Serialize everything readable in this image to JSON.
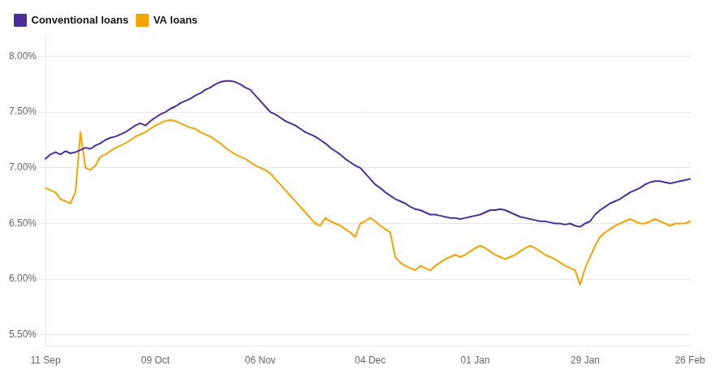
{
  "chart_data": {
    "type": "line",
    "categories": [
      "11 Sep",
      null,
      null,
      null,
      null,
      null,
      null,
      null,
      null,
      null,
      null,
      null,
      null,
      null,
      null,
      null,
      null,
      null,
      null,
      null,
      null,
      null,
      "09 Oct",
      null,
      null,
      null,
      null,
      null,
      null,
      null,
      null,
      null,
      null,
      null,
      null,
      null,
      null,
      null,
      null,
      null,
      null,
      null,
      null,
      "06 Nov",
      null,
      null,
      null,
      null,
      null,
      null,
      null,
      null,
      null,
      null,
      null,
      null,
      null,
      null,
      null,
      null,
      null,
      null,
      null,
      null,
      null,
      "04 Dec",
      null,
      null,
      null,
      null,
      null,
      null,
      null,
      null,
      null,
      null,
      null,
      null,
      null,
      null,
      null,
      null,
      null,
      null,
      null,
      null,
      "01 Jan",
      null,
      null,
      null,
      null,
      null,
      null,
      null,
      null,
      null,
      null,
      null,
      null,
      null,
      null,
      null,
      null,
      null,
      null,
      null,
      null,
      null,
      "29 Jan",
      null,
      null,
      null,
      null,
      null,
      null,
      null,
      null,
      null,
      null,
      null,
      null,
      null,
      null,
      null,
      null,
      null,
      null,
      null,
      null,
      "26 Feb"
    ],
    "series": [
      {
        "name": "Conventional loans",
        "color": "#4B2D9E",
        "values": [
          7.08,
          7.12,
          7.14,
          7.12,
          7.15,
          7.13,
          7.14,
          7.16,
          7.18,
          7.17,
          7.2,
          7.22,
          7.25,
          7.27,
          7.28,
          7.3,
          7.32,
          7.35,
          7.38,
          7.4,
          7.38,
          7.42,
          7.45,
          7.48,
          7.5,
          7.53,
          7.55,
          7.58,
          7.6,
          7.62,
          7.65,
          7.67,
          7.7,
          7.72,
          7.75,
          7.77,
          7.78,
          7.78,
          7.77,
          7.75,
          7.72,
          7.7,
          7.65,
          7.6,
          7.55,
          7.5,
          7.48,
          7.45,
          7.42,
          7.4,
          7.38,
          7.35,
          7.32,
          7.3,
          7.28,
          7.25,
          7.22,
          7.18,
          7.15,
          7.12,
          7.08,
          7.05,
          7.02,
          7.0,
          6.95,
          6.9,
          6.85,
          6.82,
          6.78,
          6.75,
          6.72,
          6.7,
          6.68,
          6.65,
          6.63,
          6.62,
          6.6,
          6.58,
          6.58,
          6.57,
          6.56,
          6.55,
          6.55,
          6.54,
          6.55,
          6.56,
          6.57,
          6.58,
          6.6,
          6.62,
          6.62,
          6.63,
          6.62,
          6.6,
          6.58,
          6.56,
          6.55,
          6.54,
          6.53,
          6.52,
          6.52,
          6.51,
          6.5,
          6.5,
          6.49,
          6.5,
          6.48,
          6.47,
          6.5,
          6.52,
          6.58,
          6.62,
          6.65,
          6.68,
          6.7,
          6.72,
          6.75,
          6.78,
          6.8,
          6.82,
          6.85,
          6.87,
          6.88,
          6.88,
          6.87,
          6.86,
          6.87,
          6.88,
          6.89,
          6.9
        ]
      },
      {
        "name": "VA loans",
        "color": "#F5A300",
        "values": [
          6.82,
          6.8,
          6.78,
          6.72,
          6.7,
          6.68,
          6.78,
          7.32,
          7.0,
          6.98,
          7.02,
          7.1,
          7.12,
          7.15,
          7.18,
          7.2,
          7.22,
          7.25,
          7.28,
          7.3,
          7.32,
          7.35,
          7.38,
          7.4,
          7.42,
          7.43,
          7.42,
          7.4,
          7.38,
          7.36,
          7.35,
          7.32,
          7.3,
          7.28,
          7.25,
          7.22,
          7.18,
          7.15,
          7.12,
          7.1,
          7.08,
          7.05,
          7.02,
          7.0,
          6.98,
          6.95,
          6.9,
          6.85,
          6.8,
          6.75,
          6.7,
          6.65,
          6.6,
          6.55,
          6.5,
          6.48,
          6.55,
          6.52,
          6.5,
          6.48,
          6.45,
          6.42,
          6.38,
          6.5,
          6.52,
          6.55,
          6.52,
          6.48,
          6.45,
          6.42,
          6.2,
          6.15,
          6.12,
          6.1,
          6.08,
          6.12,
          6.1,
          6.08,
          6.12,
          6.15,
          6.18,
          6.2,
          6.22,
          6.2,
          6.22,
          6.25,
          6.28,
          6.3,
          6.28,
          6.25,
          6.22,
          6.2,
          6.18,
          6.2,
          6.22,
          6.25,
          6.28,
          6.3,
          6.28,
          6.25,
          6.22,
          6.2,
          6.18,
          6.15,
          6.12,
          6.1,
          6.08,
          5.95,
          6.1,
          6.2,
          6.3,
          6.38,
          6.42,
          6.45,
          6.48,
          6.5,
          6.52,
          6.54,
          6.52,
          6.5,
          6.5,
          6.52,
          6.54,
          6.52,
          6.5,
          6.48,
          6.5,
          6.5,
          6.5,
          6.52
        ]
      }
    ],
    "ylim": [
      5.4,
      8.2
    ],
    "yticks": [
      {
        "value": 5.5,
        "label": "5.50%"
      },
      {
        "value": 6.0,
        "label": "6.00%"
      },
      {
        "value": 6.5,
        "label": "6.50%"
      },
      {
        "value": 7.0,
        "label": "7.00%"
      },
      {
        "value": 7.5,
        "label": "7.50%"
      },
      {
        "value": 8.0,
        "label": "8.00%"
      }
    ],
    "grid": true,
    "legend": "upper left"
  }
}
